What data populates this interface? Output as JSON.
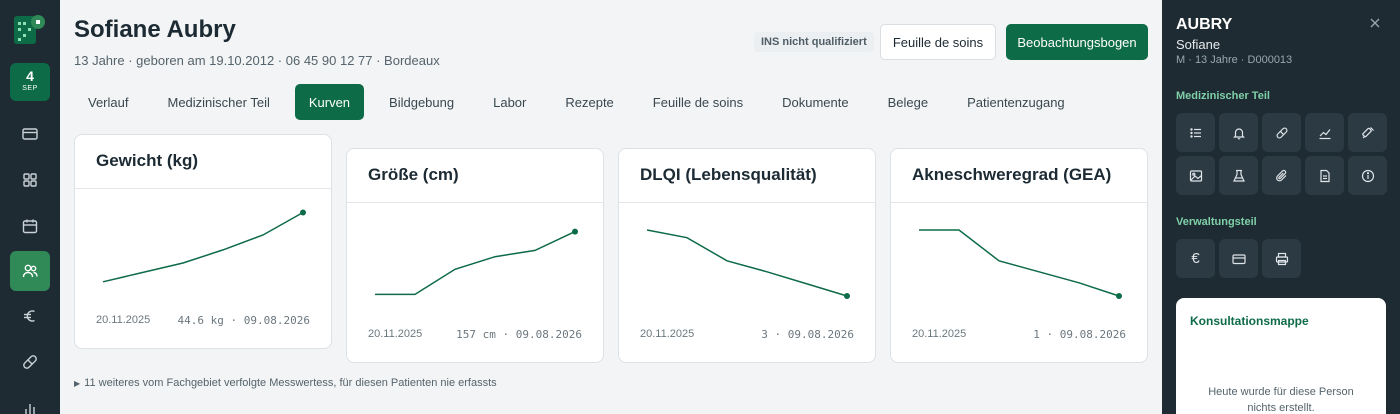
{
  "nav": {
    "date_day": "4",
    "date_month": "SEP",
    "items": [
      "card-icon",
      "grid-icon",
      "calendar-icon",
      "users-icon",
      "euro-icon",
      "pill-icon",
      "bar-chart-icon"
    ],
    "active": "users-icon",
    "accent": "#2f8a57"
  },
  "patient": {
    "name": "Sofiane Aubry",
    "info": "13 Jahre · geboren am 19.10.2012 · 06 45 90 12 77 · Bordeaux",
    "ins_badge": "INS nicht qualifiziert"
  },
  "header": {
    "btn_secondary": "Feuille de soins",
    "btn_primary": "Beobachtungsbogen",
    "primary_color": "#0e6b47"
  },
  "tabs": [
    {
      "label": "Verlauf"
    },
    {
      "label": "Medizinischer Teil"
    },
    {
      "label": "Kurven",
      "active": true
    },
    {
      "label": "Bildgebung"
    },
    {
      "label": "Labor"
    },
    {
      "label": "Rezepte"
    },
    {
      "label": "Feuille de soins"
    },
    {
      "label": "Dokumente"
    },
    {
      "label": "Belege"
    },
    {
      "label": "Patientenzugang"
    }
  ],
  "chart_data": [
    {
      "type": "line",
      "title": "Gewicht (kg)",
      "x_start": "20.11.2025",
      "end_label": "44.6 kg · 09.08.2026",
      "values": [
        40.9,
        41.4,
        41.9,
        42.6,
        43.4,
        44.6
      ],
      "ylim": [
        40.3,
        45.0
      ]
    },
    {
      "type": "line",
      "title": "Größe (cm)",
      "x_start": "20.11.2025",
      "end_label": "157 cm · 09.08.2026",
      "values": [
        152.0,
        152.0,
        154.0,
        155.0,
        155.5,
        157.0
      ],
      "ylim": [
        151.0,
        158.0
      ]
    },
    {
      "type": "line",
      "title": "DLQI (Lebensqualität)",
      "x_start": "20.11.2025",
      "end_label": "3 · 09.08.2026",
      "values": [
        9.0,
        8.3,
        6.2,
        5.2,
        4.1,
        3.0
      ],
      "ylim": [
        2.0,
        10.0
      ]
    },
    {
      "type": "line",
      "title": "Akneschweregrad (GEA)",
      "x_start": "20.11.2025",
      "end_label": "1 · 09.08.2026",
      "values": [
        4.0,
        4.0,
        2.6,
        2.1,
        1.6,
        1.0
      ],
      "ylim": [
        0.5,
        4.5
      ]
    }
  ],
  "more_text": "11 weiteres vom Fachgebiet verfolgte Messwertess, für diesen Patienten nie erfassts",
  "panel": {
    "last_name": "AUBRY",
    "first_name": "Sofiane",
    "meta": "M · 13 Jahre · D000013",
    "section_medical": "Medizinischer Teil",
    "section_admin": "Verwaltungsteil",
    "medical_icons": [
      "list-icon",
      "bell-icon",
      "pill-icon",
      "line-chart-icon",
      "syringe-icon",
      "image-icon",
      "flask-icon",
      "paperclip-icon",
      "document-icon",
      "info-icon"
    ],
    "admin_icons": [
      "euro-icon",
      "card-icon",
      "printer-icon"
    ],
    "folder_title": "Konsultationsmappe",
    "folder_message": "Heute wurde für diese Person nichts erstellt."
  }
}
